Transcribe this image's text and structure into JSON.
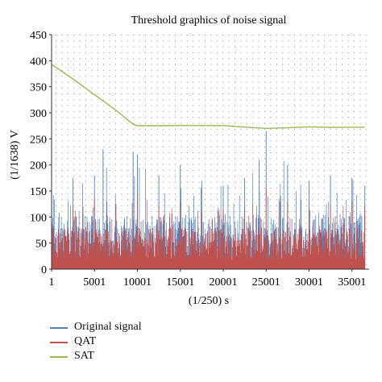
{
  "chart_data": {
    "type": "line",
    "title": "Threshold graphics of noise signal",
    "xlabel": "(1/250) s",
    "ylabel": "(1/1638) V",
    "xlim": [
      1,
      37000
    ],
    "ylim": [
      0,
      450
    ],
    "x_ticks": [
      1,
      5001,
      10001,
      15001,
      20001,
      25001,
      30001,
      35001
    ],
    "x_tick_labels": [
      "1",
      "5001",
      "10001",
      "15001",
      "20001",
      "25001",
      "30001",
      "35001"
    ],
    "y_ticks": [
      0,
      50,
      100,
      150,
      200,
      250,
      300,
      350,
      400,
      450
    ],
    "y_tick_labels": [
      "0",
      "50",
      "100",
      "150",
      "200",
      "250",
      "300",
      "350",
      "400",
      "450"
    ],
    "grid": "dotted",
    "legend_position": "bottom-left",
    "series": [
      {
        "name": "Original signal",
        "color": "#4f81bd",
        "style": "dense noise, typical 0–150, spikes up to ~265",
        "x": [
          1,
          2500,
          5000,
          6000,
          9500,
          10001,
          12500,
          15001,
          17500,
          20001,
          22500,
          24200,
          25001,
          27500,
          30001,
          32500,
          35001,
          36500
        ],
        "values": [
          150,
          175,
          180,
          230,
          225,
          220,
          180,
          200,
          170,
          160,
          175,
          210,
          265,
          200,
          170,
          180,
          175,
          160
        ]
      },
      {
        "name": "QAT",
        "color": "#c0504d",
        "style": "dense noise, typical 20–100, peaks up to ~155",
        "x": [
          1,
          2500,
          5000,
          7500,
          10001,
          12500,
          15001,
          17500,
          20001,
          22500,
          25001,
          27500,
          30001,
          32500,
          35001,
          36500
        ],
        "values": [
          130,
          120,
          135,
          125,
          145,
          120,
          130,
          110,
          115,
          120,
          155,
          130,
          120,
          125,
          130,
          120
        ]
      },
      {
        "name": "SAT",
        "color": "#9bbb59",
        "x": [
          1,
          2500,
          5000,
          7500,
          9500,
          10001,
          12500,
          15001,
          17500,
          20001,
          22500,
          25001,
          27500,
          30001,
          32500,
          35001,
          36500
        ],
        "values": [
          393,
          365,
          335,
          305,
          278,
          275,
          275,
          276,
          276,
          275,
          273,
          270,
          272,
          273,
          273,
          273,
          272
        ]
      }
    ]
  }
}
